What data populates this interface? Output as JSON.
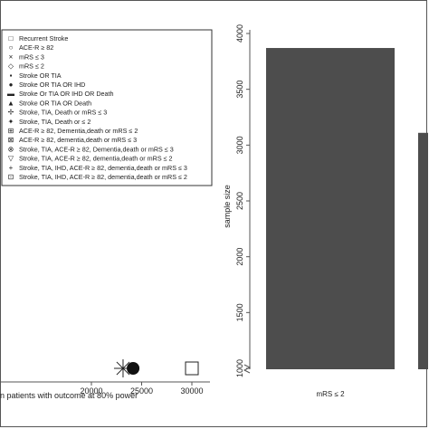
{
  "chart_data": [
    {
      "type": "scatter",
      "xlabel": "n patients with outcome at 80% power",
      "x_ticks": [
        "20000",
        "25000",
        "30000"
      ],
      "xlim": [
        15500,
        31500
      ],
      "legend_position": "top-right",
      "legend": [
        {
          "symbol": "□",
          "label": "Recurrent Stroke"
        },
        {
          "symbol": "○",
          "label": "ACE-R ≥ 82"
        },
        {
          "symbol": "×",
          "label": "mRS ≤ 3"
        },
        {
          "symbol": "◇",
          "label": "mRS ≤ 2"
        },
        {
          "symbol": "▪",
          "label": "Stroke OR TIA"
        },
        {
          "symbol": "●",
          "label": "Stroke OR TIA OR IHD"
        },
        {
          "symbol": "▬",
          "label": "Stroke Or TIA OR IHD OR Death"
        },
        {
          "symbol": "▲",
          "label": "Stroke OR TIA OR Death"
        },
        {
          "symbol": "✢",
          "label": "Stroke, TIA, Death or mRS ≤ 3"
        },
        {
          "symbol": "✦",
          "label": "Stroke, TIA, Death or ≤ 2"
        },
        {
          "symbol": "⊞",
          "label": "ACE-R ≥ 82, Dementia,death or mRS ≤ 2"
        },
        {
          "symbol": "⊠",
          "label": "ACE-R ≥ 82, dementia,death or mRS ≤ 3"
        },
        {
          "symbol": "⊗",
          "label": "Stroke, TIA, ACE-R ≥ 82, Dementia,death or mRS ≤ 3"
        },
        {
          "symbol": "▽",
          "label": "Stroke, TIA, ACE-R ≥ 82, dementia,death or mRS ≤ 2"
        },
        {
          "symbol": "+",
          "label": "Stroke, TIA, IHD, ACE-R ≥ 82, dementia,death or mRS ≤ 3"
        },
        {
          "symbol": "⊡",
          "label": "Stroke, TIA, IHD, ACE-R ≥ 82, dementia,death or mRS ≤ 2"
        }
      ],
      "points": [
        {
          "x": 23150,
          "marker": "asterisk"
        },
        {
          "x": 24150,
          "marker": "filled-circle"
        },
        {
          "x": 30000,
          "marker": "open-square"
        }
      ]
    },
    {
      "type": "bar",
      "ylabel": "sample size",
      "ylim": [
        1000,
        4000
      ],
      "y_ticks": [
        1000,
        1500,
        2000,
        2500,
        3000,
        3500,
        4000
      ],
      "y_tick_labels": [
        "1000",
        "1500",
        "2000",
        "2500",
        "3000",
        "3500",
        "4000"
      ],
      "categories": [
        "mRS ≤ 2",
        ""
      ],
      "values": [
        3870,
        3110
      ],
      "bar_color": "#4d4d4d"
    }
  ]
}
